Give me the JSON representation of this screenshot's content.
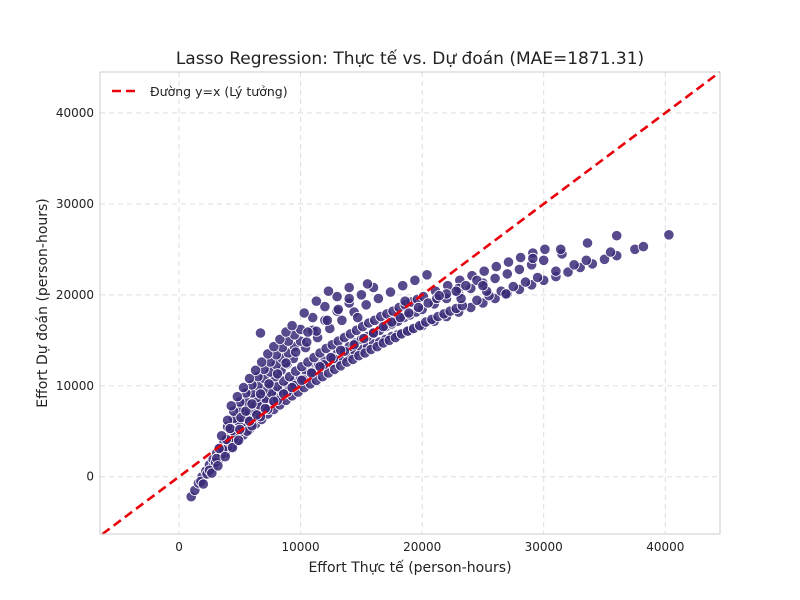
{
  "chart_data": {
    "type": "scatter",
    "title": "Lasso Regression: Thực tế vs. Dự đoán (MAE=1871.31)",
    "xlabel": "Effort Thực tế (person-hours)",
    "ylabel": "Effort Dự đoán (person-hours)",
    "xlim": [
      -6500,
      44500
    ],
    "ylim": [
      -6300,
      44500
    ],
    "xticks": [
      0,
      10000,
      20000,
      30000,
      40000
    ],
    "yticks": [
      0,
      10000,
      20000,
      30000,
      40000
    ],
    "grid": true,
    "legend_position": "top-left",
    "reference_line": {
      "name": "Đường y=x (Lý tưởng)",
      "color": "#e8000b",
      "style": "dashed"
    },
    "point_color": "#3b2a78",
    "series": [
      {
        "x": [
          1000,
          1300,
          1600,
          1900,
          2200,
          2500,
          2800,
          3100,
          3400,
          3700,
          4000,
          4300,
          4600,
          4900,
          5200,
          5600,
          6000,
          6400,
          6800,
          7200,
          7600,
          8000,
          8500,
          9000,
          9500,
          10000,
          10500,
          11000,
          11500,
          12000,
          12500,
          13000,
          13500,
          14000,
          14500,
          15000,
          15500,
          16000,
          16500,
          17000,
          17500,
          18000,
          19000,
          20000,
          21000,
          22000,
          23000,
          24000,
          25000,
          26000,
          27000,
          28000,
          29000,
          30000,
          31000,
          32000,
          33000,
          34000,
          35000,
          36000,
          37500,
          38200,
          40300,
          1800,
          2300,
          2800,
          3300,
          3800,
          4300,
          4800,
          5300,
          5800,
          6300,
          6800,
          7300,
          7800,
          8300,
          8800,
          9300,
          9800,
          10300,
          10800,
          11300,
          11800,
          12300,
          12800,
          13300,
          13800,
          14300,
          14800,
          15300,
          15800,
          16300,
          16800,
          17300,
          17800,
          18300,
          18800,
          19300,
          19800,
          20300,
          20800,
          21300,
          21800,
          22300,
          22800,
          23300,
          24500,
          25500,
          26500,
          27500,
          28500,
          29500,
          31000,
          32500,
          33500,
          35500,
          2500,
          3000,
          3500,
          4000,
          4500,
          5000,
          5500,
          6000,
          6500,
          7000,
          7500,
          8000,
          8500,
          9000,
          9500,
          10000,
          10500,
          11000,
          11500,
          12000,
          12500,
          13000,
          13500,
          14000,
          14500,
          15000,
          15500,
          16000,
          16500,
          17000,
          17500,
          18000,
          18500,
          19000,
          19500,
          20000,
          21000,
          22000,
          23000,
          24000,
          25000,
          26000,
          27000,
          28000,
          29000,
          30000,
          31500,
          3100,
          3600,
          4100,
          4600,
          5100,
          5600,
          6100,
          6600,
          7100,
          7600,
          8100,
          8600,
          9100,
          9600,
          10100,
          10600,
          11100,
          11600,
          12100,
          12600,
          13100,
          13600,
          14100,
          14600,
          15100,
          15600,
          16100,
          16600,
          17100,
          17600,
          18100,
          18600,
          19100,
          19600,
          20100,
          21100,
          22100,
          23100,
          24100,
          25100,
          26100,
          27100,
          28100,
          29100,
          30100,
          3300,
          3900,
          4400,
          4900,
          5400,
          5900,
          6400,
          6900,
          7400,
          7900,
          8400,
          8900,
          9400,
          10400,
          11400,
          12400,
          13400,
          14400,
          15400,
          16400,
          17400,
          18400,
          19400,
          20400,
          3500,
          4000,
          4500,
          5000,
          5500,
          6000,
          6500,
          7000,
          7500,
          8000,
          8500,
          9000,
          9500,
          10000,
          11000,
          12000,
          13000,
          14000,
          15000,
          16000,
          4000,
          4500,
          5000,
          5500,
          6000,
          6500,
          7000,
          7500,
          8000,
          8500,
          9000,
          9500,
          10000,
          11000,
          12000,
          13000,
          14000,
          4300,
          4800,
          5300,
          5800,
          6300,
          6800,
          7300,
          7800,
          8300,
          8800,
          9300,
          10300,
          11300,
          12300,
          4200,
          5100,
          5500,
          6000,
          6700,
          7400,
          8100,
          8800,
          9600,
          10500,
          11300,
          12200,
          13100,
          14000,
          15500,
          2000,
          2700,
          3200,
          3800,
          4400,
          4900,
          5600,
          6000,
          6700,
          7300,
          8100,
          8900,
          9500,
          10200,
          11000,
          11900,
          12700,
          13600,
          14400,
          15200,
          16000,
          16800,
          17500,
          18200,
          18900,
          19700,
          20500,
          21200,
          22000,
          23000,
          23600,
          24500,
          21400,
          26900,
          29100,
          31400,
          33600,
          36000,
          25300,
          23200,
          6700,
          10600,
          14700,
          18600,
          22800,
          25000,
          5000,
          5800,
          6400,
          7100,
          7800,
          8600,
          9300,
          10100,
          10900,
          11600,
          12500,
          13300
        ],
        "y": [
          -2200,
          -1500,
          -700,
          0,
          600,
          1300,
          1900,
          2600,
          3200,
          3800,
          4300,
          4900,
          5400,
          5900,
          6300,
          6800,
          7300,
          7700,
          8100,
          8500,
          8900,
          9300,
          9700,
          10100,
          10500,
          10900,
          11200,
          11600,
          11900,
          12200,
          12500,
          12800,
          13100,
          13400,
          13700,
          14000,
          14300,
          14600,
          14800,
          15100,
          15400,
          15600,
          16100,
          16600,
          17100,
          17600,
          18100,
          18600,
          19100,
          19600,
          20100,
          20600,
          21100,
          21600,
          22000,
          22500,
          23000,
          23400,
          23900,
          24300,
          25000,
          25300,
          26600,
          -500,
          300,
          1100,
          1900,
          2600,
          3300,
          4000,
          4600,
          5200,
          5800,
          6300,
          6900,
          7400,
          7900,
          8400,
          8900,
          9300,
          9800,
          10200,
          10600,
          11000,
          11400,
          11800,
          12200,
          12600,
          12900,
          13300,
          13600,
          14000,
          14300,
          14700,
          15000,
          15300,
          15700,
          16000,
          16300,
          16600,
          17000,
          17300,
          17600,
          17900,
          18200,
          18500,
          18800,
          19400,
          19900,
          20400,
          20900,
          21400,
          21900,
          22600,
          23300,
          23800,
          24700,
          700,
          1600,
          2500,
          3300,
          4100,
          4900,
          5600,
          6300,
          7000,
          7600,
          8200,
          8800,
          9400,
          9900,
          10400,
          10900,
          11400,
          11900,
          12300,
          12700,
          13100,
          13500,
          13900,
          14300,
          14700,
          15100,
          15400,
          15800,
          16100,
          16500,
          16800,
          17100,
          17500,
          17800,
          18100,
          18400,
          19000,
          19600,
          20200,
          20700,
          21300,
          21800,
          22300,
          22800,
          23300,
          23800,
          24500,
          2000,
          3000,
          3900,
          4800,
          5600,
          6400,
          7200,
          7900,
          8600,
          9200,
          9900,
          10500,
          11000,
          11600,
          12100,
          12600,
          13100,
          13600,
          14100,
          14500,
          14900,
          15300,
          15700,
          16100,
          16500,
          16900,
          17200,
          17600,
          17900,
          18200,
          18600,
          18900,
          19200,
          19500,
          19800,
          20400,
          21000,
          21600,
          22100,
          22600,
          23100,
          23600,
          24100,
          24600,
          25000,
          3100,
          4100,
          5100,
          6100,
          7000,
          7900,
          8700,
          9500,
          10300,
          11000,
          11700,
          12400,
          13000,
          14200,
          15300,
          16300,
          17200,
          18100,
          18900,
          19600,
          20300,
          21000,
          21600,
          22200,
          4500,
          5500,
          6400,
          7400,
          8300,
          9200,
          10000,
          10800,
          11500,
          12300,
          13000,
          13600,
          14300,
          14900,
          16100,
          17200,
          18200,
          19100,
          20000,
          20800,
          6200,
          7200,
          8200,
          9200,
          10100,
          11000,
          11800,
          12600,
          13400,
          14200,
          14900,
          15600,
          16200,
          17500,
          18700,
          19800,
          20800,
          7800,
          8800,
          9800,
          10800,
          11700,
          12600,
          13500,
          14300,
          15100,
          15900,
          16600,
          18000,
          19300,
          20400,
          5300,
          6500,
          7200,
          8000,
          9100,
          10200,
          11300,
          12500,
          13700,
          14800,
          16000,
          17200,
          18400,
          19600,
          21200,
          -800,
          400,
          1200,
          2200,
          3200,
          4000,
          5000,
          5600,
          6600,
          7400,
          8400,
          9300,
          10000,
          10700,
          11500,
          12300,
          13000,
          13800,
          14500,
          15200,
          15800,
          16500,
          17000,
          17500,
          18000,
          18600,
          19100,
          19600,
          20100,
          20700,
          21000,
          21600,
          19900,
          20100,
          24000,
          25000,
          25700,
          26500,
          20400,
          19600,
          15800,
          15900,
          17500,
          19300,
          20400,
          21000,
          5200,
          6100,
          6800,
          7500,
          8300,
          9100,
          9800,
          10600,
          11400,
          12100,
          13100,
          13900
        ]
      }
    ]
  }
}
